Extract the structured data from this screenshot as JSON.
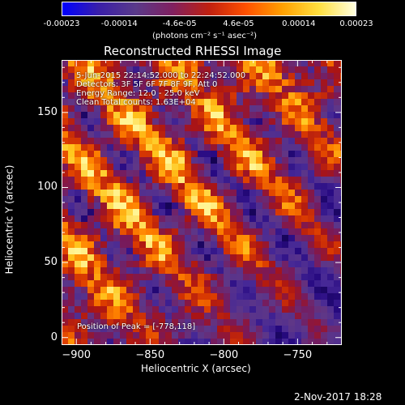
{
  "colorbar": {
    "ticks": [
      {
        "label": "-0.00023",
        "value": -0.00023
      },
      {
        "label": "-0.00014",
        "value": -0.00014
      },
      {
        "label": "-4.6e-05",
        "value": -4.6e-05
      },
      {
        "label": "4.6e-05",
        "value": 4.6e-05
      },
      {
        "label": "0.00014",
        "value": 0.00014
      },
      {
        "label": "0.00023",
        "value": 0.00023
      }
    ],
    "range": [
      -0.00023,
      0.00023
    ],
    "units_label": "(photons cm⁻² s⁻¹ asec⁻²)",
    "colors": [
      "#0000ff",
      "#3a1fa8",
      "#5a3a8a",
      "#802060",
      "#c02010",
      "#ff5000",
      "#ffa000",
      "#ffe040",
      "#ffffe0"
    ]
  },
  "chart_data": {
    "type": "heatmap",
    "title": "Reconstructed RHESSI Image",
    "xlabel": "Heliocentric X (arcsec)",
    "ylabel": "Heliocentric Y (arcsec)",
    "xlim": [
      -910,
      -720
    ],
    "ylim": [
      -5,
      185
    ],
    "x_ticks": [
      -900,
      -850,
      -800,
      -750
    ],
    "y_ticks": [
      0,
      50,
      100,
      150
    ],
    "x_tick_labels": [
      "−900",
      "−850",
      "−800",
      "−750"
    ],
    "y_tick_labels": [
      "0",
      "50",
      "100",
      "150"
    ],
    "annotations": {
      "line1": "5-Jun-2015 22:14:52.000 to 22:24:52.000",
      "line2": "Detectors: 3F 5F 6F 7F 8F 9F, Att 0",
      "line3": "Energy Range: 12.0 - 25.0 keV",
      "line4": "Clean     Total counts: 1.63E+04",
      "peak": "Position of Peak = [-778,118]"
    },
    "peak_position": [
      -778,
      118
    ],
    "pattern": "diagonal fringes, bright bands running from upper-left to lower-right, dimmer toward lower-right"
  },
  "footer": {
    "date": "2-Nov-2017 18:28"
  }
}
